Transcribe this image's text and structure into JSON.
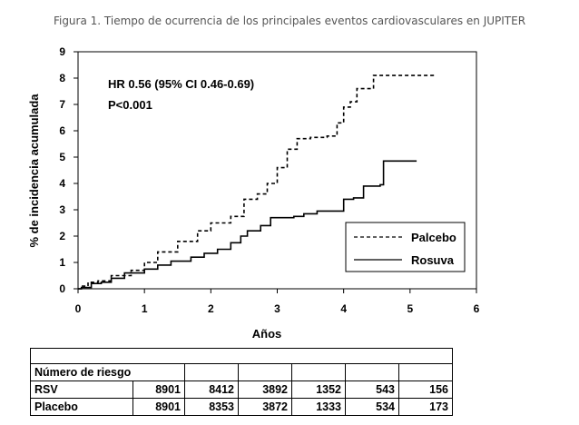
{
  "figure_title": "Figura 1. Tiempo de ocurrencia de los principales eventos cardiovasculares en JUPITER",
  "annotations": {
    "hr": "HR 0.56 (95% CI 0.46-0.69)",
    "p": "P<0.001"
  },
  "chart_data": {
    "type": "line",
    "title": "",
    "xlabel": "Años",
    "ylabel": "% de incidencia acumulada",
    "xlim": [
      0,
      6
    ],
    "ylim": [
      0,
      9
    ],
    "x_ticks": [
      "0",
      "1",
      "2",
      "3",
      "4",
      "5",
      "6"
    ],
    "y_ticks": [
      "0",
      "1",
      "2",
      "3",
      "4",
      "5",
      "6",
      "7",
      "8",
      "9"
    ],
    "grid": false,
    "legend_position": "lower-right",
    "series": [
      {
        "name": "Palcebo",
        "style": "dashed",
        "color": "#000000",
        "points": [
          [
            0,
            0
          ],
          [
            0.05,
            0.1
          ],
          [
            0.15,
            0.25
          ],
          [
            0.3,
            0.3
          ],
          [
            0.5,
            0.5
          ],
          [
            0.8,
            0.7
          ],
          [
            1.0,
            1.0
          ],
          [
            1.2,
            1.4
          ],
          [
            1.5,
            1.8
          ],
          [
            1.8,
            2.2
          ],
          [
            2.0,
            2.5
          ],
          [
            2.3,
            2.75
          ],
          [
            2.5,
            3.4
          ],
          [
            2.7,
            3.6
          ],
          [
            2.85,
            4.0
          ],
          [
            3.0,
            4.6
          ],
          [
            3.15,
            5.3
          ],
          [
            3.3,
            5.7
          ],
          [
            3.5,
            5.75
          ],
          [
            3.75,
            5.8
          ],
          [
            3.9,
            6.3
          ],
          [
            4.0,
            6.9
          ],
          [
            4.1,
            7.1
          ],
          [
            4.2,
            7.6
          ],
          [
            4.35,
            7.6
          ],
          [
            4.45,
            8.1
          ],
          [
            5.35,
            8.05
          ]
        ]
      },
      {
        "name": "Rosuva",
        "style": "solid",
        "color": "#000000",
        "points": [
          [
            0,
            0
          ],
          [
            0.05,
            0.05
          ],
          [
            0.2,
            0.2
          ],
          [
            0.35,
            0.25
          ],
          [
            0.5,
            0.4
          ],
          [
            0.7,
            0.6
          ],
          [
            1.0,
            0.75
          ],
          [
            1.2,
            0.9
          ],
          [
            1.4,
            1.05
          ],
          [
            1.7,
            1.2
          ],
          [
            1.9,
            1.35
          ],
          [
            2.1,
            1.5
          ],
          [
            2.3,
            1.75
          ],
          [
            2.45,
            2.0
          ],
          [
            2.55,
            2.2
          ],
          [
            2.75,
            2.4
          ],
          [
            2.9,
            2.7
          ],
          [
            3.05,
            2.7
          ],
          [
            3.25,
            2.75
          ],
          [
            3.4,
            2.85
          ],
          [
            3.6,
            2.95
          ],
          [
            3.9,
            2.95
          ],
          [
            4.0,
            3.4
          ],
          [
            4.15,
            3.45
          ],
          [
            4.3,
            3.9
          ],
          [
            4.55,
            3.95
          ],
          [
            4.6,
            4.85
          ],
          [
            5.1,
            4.85
          ]
        ]
      }
    ]
  },
  "risk_table": {
    "header": "Número de riesgo",
    "rows": [
      {
        "label": "RSV",
        "values": [
          "8901",
          "8412",
          "3892",
          "1352",
          "543",
          "156"
        ]
      },
      {
        "label": "Placebo",
        "values": [
          "8901",
          "8353",
          "3872",
          "1333",
          "534",
          "173"
        ]
      }
    ]
  }
}
